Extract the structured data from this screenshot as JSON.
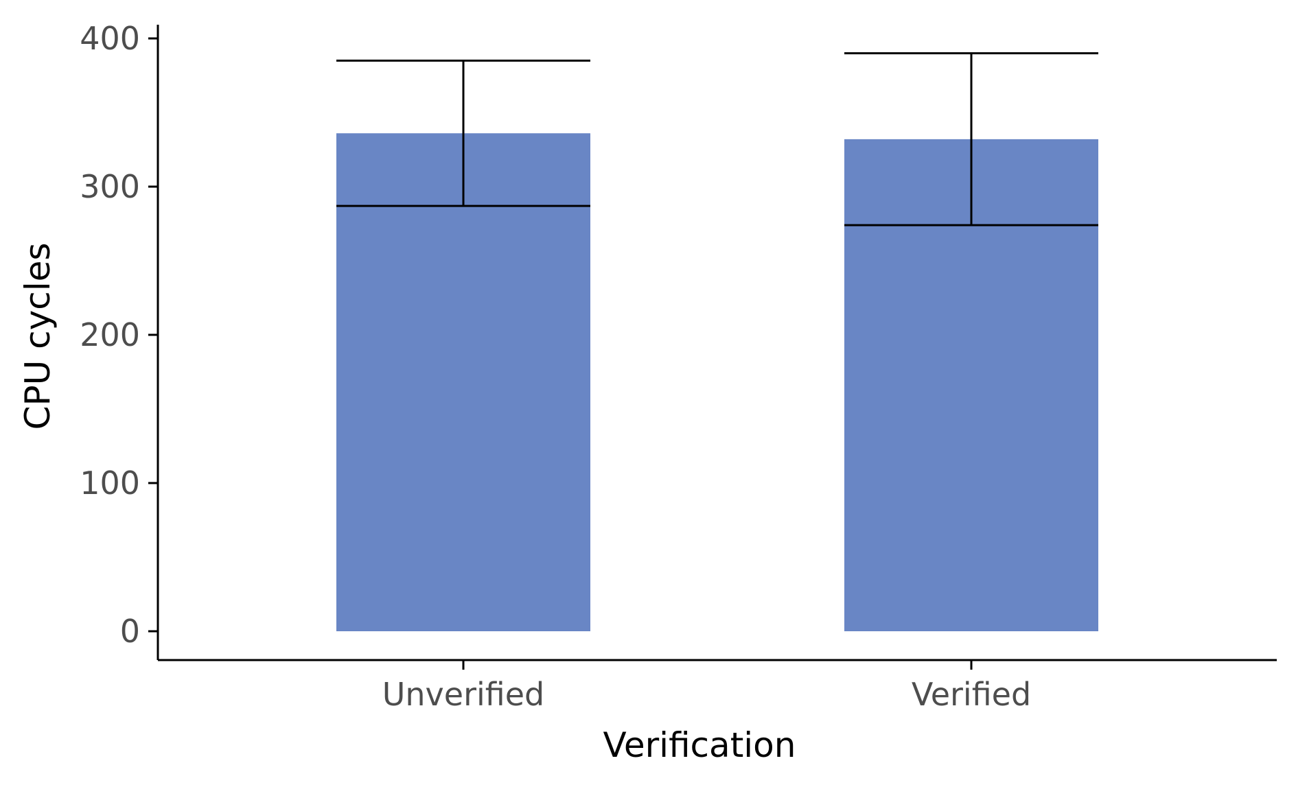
{
  "chart_data": {
    "type": "bar",
    "categories": [
      "Unverified",
      "Verified"
    ],
    "values": [
      336,
      332
    ],
    "error_bars": [
      {
        "low": 287,
        "high": 385
      },
      {
        "low": 274,
        "high": 390
      }
    ],
    "xlabel": "Verification",
    "ylabel": "CPU cycles",
    "ylim": [
      0,
      400
    ],
    "yticks": [
      0,
      100,
      200,
      300,
      400
    ],
    "grid": false,
    "legend": "none",
    "bar_color": "#6986c5"
  }
}
